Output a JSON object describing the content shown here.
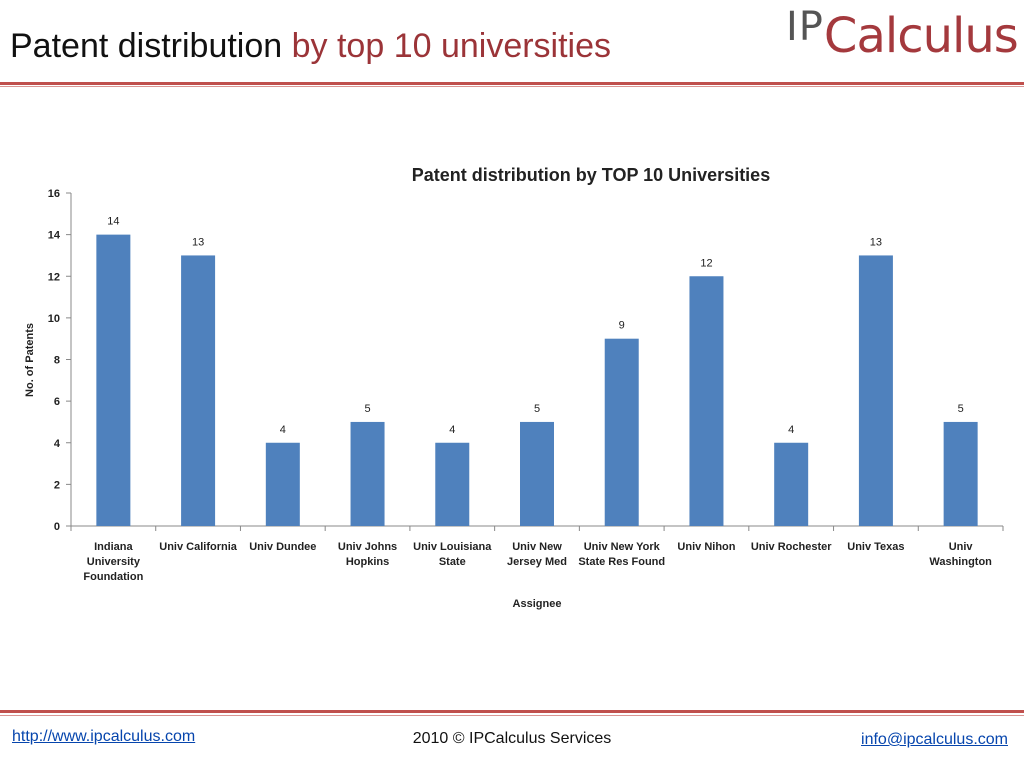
{
  "header": {
    "title_main": "Patent distribution",
    "title_accent": "by top 10 universities",
    "logo_ip": "IP",
    "logo_calculus": "Calculus"
  },
  "footer": {
    "website": "http://www.ipcalculus.com",
    "copyright": "2010 © IPCalculus Services",
    "email": "info@ipcalculus.com"
  },
  "chart_data": {
    "type": "bar",
    "title": "Patent distribution  by TOP 10 Universities",
    "xlabel": "Assignee",
    "ylabel": "No. of Patents",
    "ylim": [
      0,
      16
    ],
    "yticks": [
      0,
      2,
      4,
      6,
      8,
      10,
      12,
      14,
      16
    ],
    "categories": [
      "Indiana University Foundation",
      "Univ California",
      "Univ Dundee",
      "Univ Johns Hopkins",
      "Univ Louisiana State",
      "Univ New Jersey Med",
      "Univ New York State Res Found",
      "Univ Nihon",
      "Univ Rochester",
      "Univ Texas",
      "Univ Washington"
    ],
    "category_lines": [
      [
        "Indiana",
        "University",
        "Foundation"
      ],
      [
        "Univ California"
      ],
      [
        "Univ Dundee"
      ],
      [
        "Univ Johns",
        "Hopkins"
      ],
      [
        "Univ Louisiana",
        "State"
      ],
      [
        "Univ New",
        "Jersey Med"
      ],
      [
        "Univ New York",
        "State Res Found"
      ],
      [
        "Univ Nihon"
      ],
      [
        "Univ Rochester"
      ],
      [
        "Univ Texas"
      ],
      [
        "Univ",
        "Washington"
      ]
    ],
    "values": [
      14,
      13,
      4,
      5,
      4,
      5,
      9,
      12,
      4,
      13,
      5
    ],
    "bar_color": "#4f81bd",
    "grid": false,
    "legend": "none"
  }
}
